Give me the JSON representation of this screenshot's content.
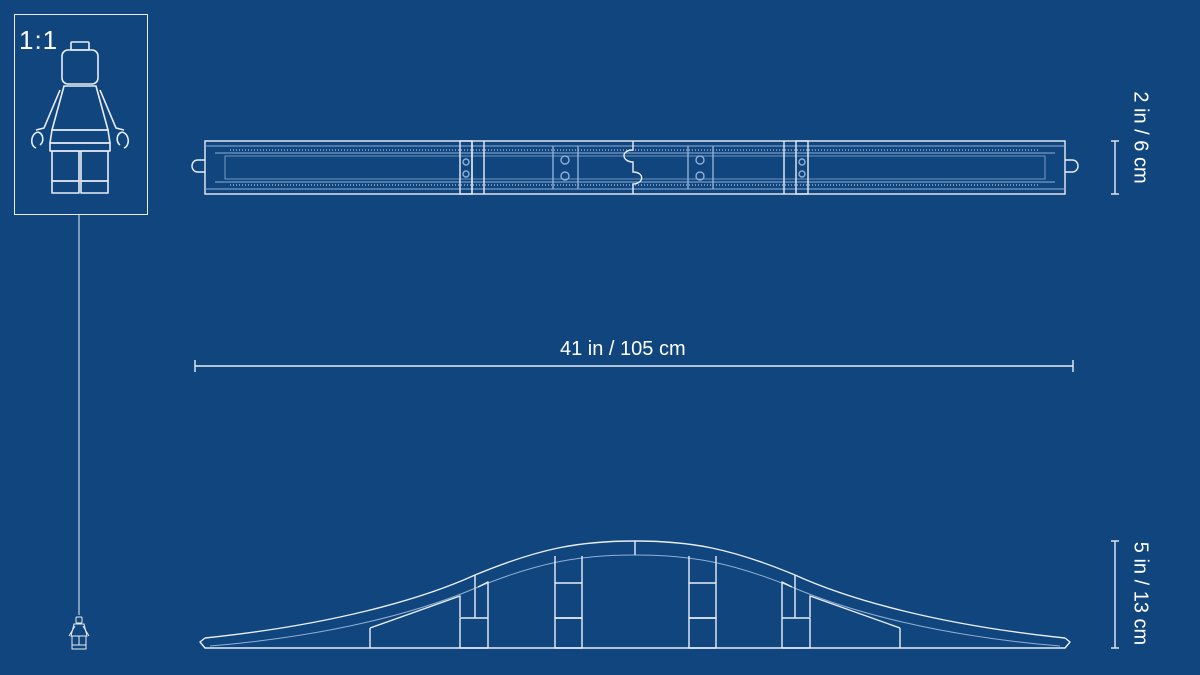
{
  "scale_box": {
    "label": "1:1"
  },
  "dimensions": {
    "length": "41 in / 105 cm",
    "width": "2 in / 6 cm",
    "height": "5 in / 13 cm"
  },
  "colors": {
    "background": "#11457e",
    "line": "#e8eef6",
    "detail": "#8fb0d6"
  }
}
